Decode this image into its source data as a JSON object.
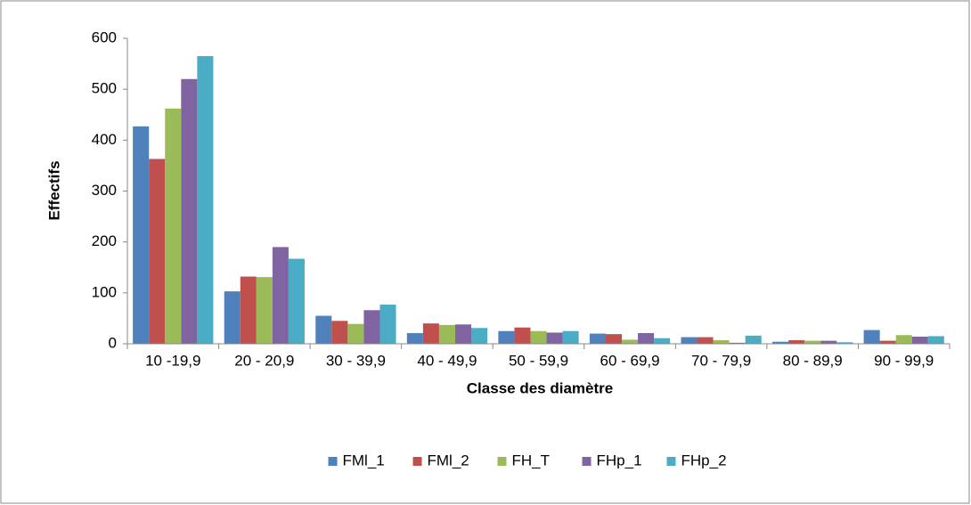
{
  "chart_data": {
    "type": "bar",
    "categories": [
      "10 -19,9",
      "20 - 20,9",
      "30 - 39,9",
      "40 - 49,9",
      "50 - 59,9",
      "60 - 69,9",
      "70 - 79,9",
      "80  - 89,9",
      "90 - 99,9"
    ],
    "series": [
      {
        "name": "FMl_1",
        "color": "#4f81bd",
        "values": [
          427,
          103,
          55,
          21,
          25,
          20,
          13,
          4,
          27
        ]
      },
      {
        "name": "FMl_2",
        "color": "#c0504d",
        "values": [
          363,
          132,
          45,
          40,
          32,
          19,
          13,
          7,
          6
        ]
      },
      {
        "name": "FH_T",
        "color": "#9bbb59",
        "values": [
          462,
          131,
          39,
          37,
          25,
          8,
          7,
          6,
          17
        ]
      },
      {
        "name": "FHp_1",
        "color": "#8064a2",
        "values": [
          520,
          190,
          66,
          38,
          22,
          21,
          2,
          6,
          14
        ]
      },
      {
        "name": "FHp_2",
        "color": "#4bacc6",
        "values": [
          565,
          167,
          77,
          31,
          25,
          11,
          16,
          3,
          15
        ]
      }
    ],
    "x_label": "Classe des diamètre",
    "y_label": "Effectifs",
    "ylim": [
      0,
      600
    ],
    "yticks": [
      0,
      100,
      200,
      300,
      400,
      500,
      600
    ],
    "grid": false,
    "legend": "bottom"
  }
}
